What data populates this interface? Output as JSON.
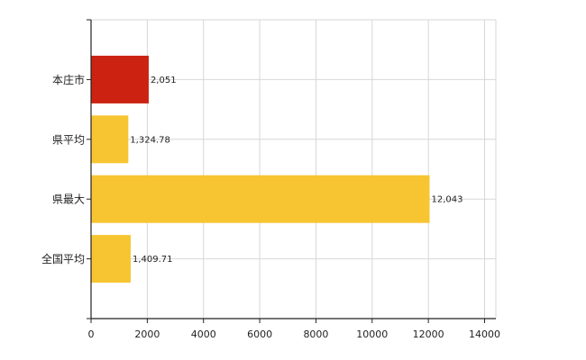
{
  "chart_data": {
    "type": "bar",
    "orientation": "horizontal",
    "categories": [
      "本庄市",
      "県平均",
      "県最大",
      "全国平均"
    ],
    "values": [
      2051,
      1324.78,
      12043,
      1409.71
    ],
    "data_labels": [
      "2,051",
      "1,324.78",
      "12,043",
      "1,409.71"
    ],
    "colors": [
      "#cc2211",
      "#f7c532",
      "#f7c532",
      "#f7c532"
    ],
    "xlim": [
      0,
      14400
    ],
    "x_ticks": [
      0,
      2000,
      4000,
      6000,
      8000,
      10000,
      12000,
      14000
    ],
    "x_tick_labels": [
      "0",
      "2000",
      "4000",
      "6000",
      "8000",
      "10000",
      "12000",
      "14000"
    ],
    "grid": true,
    "legend": "none"
  }
}
